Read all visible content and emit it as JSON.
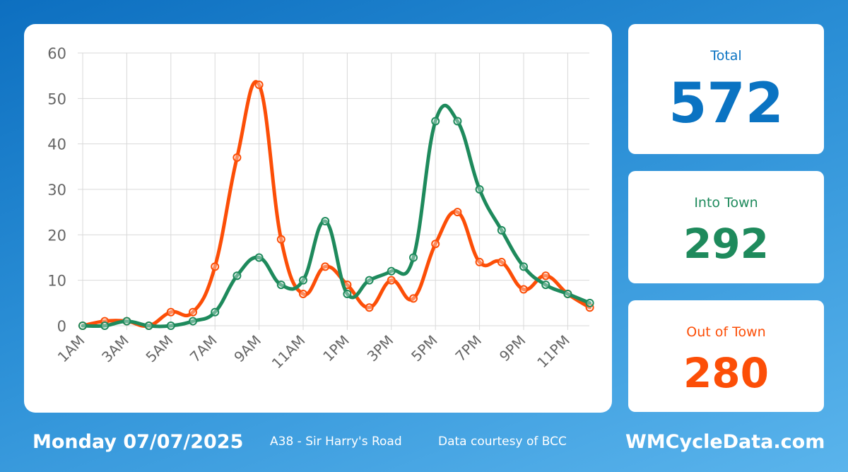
{
  "chart_data": {
    "type": "line",
    "x": [
      "1AM",
      "2AM",
      "3AM",
      "4AM",
      "5AM",
      "6AM",
      "7AM",
      "8AM",
      "9AM",
      "10AM",
      "11AM",
      "12PM",
      "1PM",
      "2PM",
      "3PM",
      "4PM",
      "5PM",
      "6PM",
      "7PM",
      "8PM",
      "9PM",
      "10PM",
      "11PM",
      "12AM"
    ],
    "x_tick_labels": [
      "1AM",
      "3AM",
      "5AM",
      "7AM",
      "9AM",
      "11AM",
      "1PM",
      "3PM",
      "5PM",
      "7PM",
      "9PM",
      "11PM"
    ],
    "y_ticks": [
      0,
      10,
      20,
      30,
      40,
      50,
      60
    ],
    "ylim": [
      0,
      60
    ],
    "grid": true,
    "series": [
      {
        "key": "into",
        "color": "#1e8a5c",
        "values": [
          0,
          0,
          1,
          0,
          0,
          1,
          3,
          11,
          15,
          9,
          10,
          23,
          7,
          10,
          12,
          15,
          45,
          45,
          30,
          21,
          13,
          9,
          7,
          5
        ]
      },
      {
        "key": "out",
        "color": "#fc4e07",
        "values": [
          0,
          1,
          1,
          0,
          3,
          3,
          13,
          37,
          53,
          19,
          7,
          13,
          9,
          4,
          10,
          6,
          18,
          25,
          14,
          14,
          8,
          11,
          7,
          4
        ]
      }
    ]
  },
  "stats": {
    "total": {
      "label": "Total",
      "value": "572",
      "color": "#0a73c2"
    },
    "into_town": {
      "label": "Into Town",
      "value": "292",
      "color": "#1e8a5c"
    },
    "out_of_town": {
      "label": "Out of Town",
      "value": "280",
      "color": "#fc4e07"
    }
  },
  "footer": {
    "date": "Monday 07/07/2025",
    "location": "A38 - Sir Harry's Road",
    "credit": "Data courtesy of BCC",
    "site": "WMCycleData.com"
  }
}
